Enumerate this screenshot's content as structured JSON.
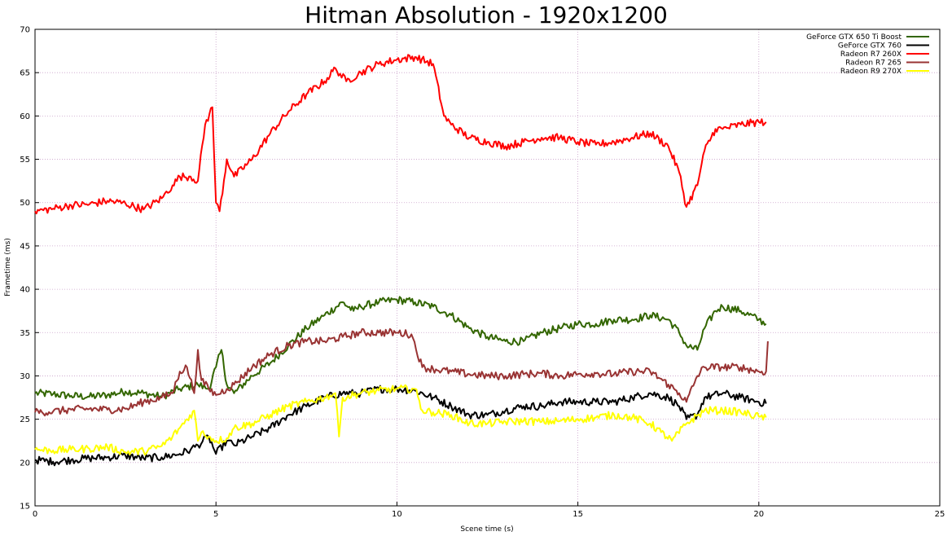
{
  "chart_data": {
    "type": "line",
    "title": "Hitman Absolution - 1920x1200",
    "xlabel": "Scene time (s)",
    "ylabel": "Frametime (ms)",
    "xlim": [
      0,
      25
    ],
    "ylim": [
      15,
      70
    ],
    "xticks": [
      0,
      5,
      10,
      15,
      20,
      25
    ],
    "yticks": [
      15,
      20,
      25,
      30,
      35,
      40,
      45,
      50,
      55,
      60,
      65,
      70
    ],
    "grid": true,
    "legend_position": "top-right",
    "series": [
      {
        "name": "GeForce GTX 650 Ti Boost",
        "color": "#336600",
        "x": [
          0,
          0.5,
          1,
          1.5,
          2,
          2.5,
          3,
          3.5,
          4,
          4.5,
          4.8,
          5.0,
          5.15,
          5.3,
          5.5,
          6,
          6.5,
          7,
          7.5,
          8,
          8.5,
          8.8,
          9,
          9.5,
          10,
          10.5,
          11,
          11.5,
          12,
          12.5,
          13,
          13.5,
          14,
          14.5,
          15,
          15.5,
          16,
          16.5,
          17,
          17.5,
          17.8,
          18,
          18.3,
          18.5,
          18.8,
          19,
          19.5,
          20,
          20.2
        ],
        "y": [
          28,
          27.9,
          27.7,
          27.6,
          27.8,
          28.2,
          28,
          27.6,
          28.5,
          29,
          28.5,
          31,
          33,
          29,
          28,
          30,
          31.5,
          33.5,
          35.5,
          37,
          38.5,
          37.5,
          38,
          38.5,
          38.8,
          38.5,
          38,
          37,
          35.5,
          34.5,
          34,
          34,
          35,
          35.5,
          36,
          36,
          36.5,
          36.5,
          37,
          36.5,
          35,
          33.5,
          33,
          35.5,
          37.5,
          38,
          37.5,
          36.5,
          36
        ]
      },
      {
        "name": "GeForce GTX 760",
        "color": "#000000",
        "x": [
          0,
          0.5,
          1,
          1.5,
          2,
          2.5,
          3,
          3.5,
          4,
          4.3,
          4.5,
          4.8,
          5.0,
          5.3,
          5.5,
          6,
          6.5,
          7,
          7.5,
          8,
          8.5,
          9,
          9.5,
          10,
          10.5,
          11,
          11.5,
          12,
          12.5,
          13,
          13.5,
          14,
          14.5,
          15,
          15.5,
          16,
          16.5,
          17,
          17.5,
          17.8,
          18,
          18.3,
          18.5,
          19,
          19.5,
          20,
          20.2
        ],
        "y": [
          20.3,
          20.1,
          20.3,
          20.5,
          20.6,
          20.8,
          20.5,
          20.6,
          21,
          21.5,
          22,
          23,
          21,
          22.5,
          22,
          23,
          24,
          25.5,
          26.5,
          27.5,
          28,
          28,
          28.5,
          28.5,
          28.3,
          27.5,
          26.5,
          25.5,
          25.5,
          26,
          26.5,
          26.5,
          27,
          27,
          27,
          27,
          27.5,
          28,
          27.5,
          26.5,
          25,
          25.5,
          27.5,
          28,
          27.5,
          27,
          26.8
        ]
      },
      {
        "name": "Radeon R7 260X",
        "color": "#ff0000",
        "x": [
          0,
          0.5,
          1,
          1.5,
          2,
          2.5,
          3,
          3.5,
          3.8,
          4,
          4.3,
          4.5,
          4.7,
          4.9,
          5.0,
          5.1,
          5.3,
          5.5,
          6,
          6.5,
          7,
          7.5,
          8,
          8.3,
          8.6,
          9,
          9.5,
          10,
          10.5,
          11.0,
          11.3,
          11.5,
          12,
          12.5,
          13,
          13.5,
          14,
          14.5,
          15,
          15.5,
          16,
          16.5,
          17,
          17.5,
          17.8,
          18,
          18.3,
          18.5,
          18.8,
          19,
          19.5,
          20,
          20.2
        ],
        "y": [
          49,
          49.3,
          49.7,
          49.8,
          50.2,
          49.9,
          49.2,
          50.5,
          52,
          53,
          53,
          52.5,
          59,
          61,
          50,
          49,
          55,
          53,
          55,
          58,
          60.5,
          62.5,
          64,
          65.5,
          64,
          65,
          66,
          66.5,
          66.8,
          66,
          60,
          59,
          57.5,
          57,
          56.5,
          57,
          57.5,
          57.5,
          57,
          56.7,
          57,
          57.5,
          58,
          56.5,
          53.5,
          49.5,
          52,
          56,
          58.5,
          58.5,
          59,
          59.3,
          59.3
        ]
      },
      {
        "name": "Radeon R7 265",
        "color": "#993333",
        "x": [
          0,
          0.5,
          1,
          1.5,
          2,
          2.5,
          3,
          3.5,
          3.8,
          4,
          4.2,
          4.4,
          4.5,
          4.6,
          4.8,
          5.0,
          5.3,
          5.5,
          6,
          6.5,
          7,
          7.5,
          8,
          8.5,
          9,
          9.5,
          10,
          10.4,
          10.7,
          11,
          11.5,
          12,
          12.5,
          13,
          13.5,
          14,
          14.5,
          15,
          15.5,
          16,
          16.5,
          17,
          17.5,
          17.8,
          18,
          18.3,
          18.5,
          19,
          19.5,
          20,
          20.2,
          20.25
        ],
        "y": [
          25.8,
          25.9,
          26.1,
          26.2,
          26.1,
          26.2,
          27,
          27.5,
          28,
          30.5,
          31,
          28,
          33,
          29.5,
          28.5,
          27.8,
          28.5,
          29,
          31,
          32.5,
          33.5,
          34,
          34,
          34.5,
          35,
          35,
          35,
          34.8,
          31,
          30.8,
          30.5,
          30.2,
          30,
          30,
          30.2,
          30.3,
          30,
          30.2,
          30.3,
          30.2,
          30.5,
          30.5,
          29,
          28,
          27,
          30,
          31,
          31,
          31,
          30.5,
          30.5,
          34
        ]
      },
      {
        "name": "Radeon R9 270X",
        "color": "#ffff00",
        "x": [
          0,
          0.5,
          1,
          1.5,
          2,
          2.5,
          3,
          3.5,
          3.8,
          4,
          4.2,
          4.4,
          4.5,
          4.6,
          4.8,
          5.0,
          5.3,
          5.5,
          6,
          6.5,
          7,
          7.5,
          8,
          8.3,
          8.4,
          8.5,
          9,
          9.5,
          10,
          10.5,
          10.7,
          11,
          11.5,
          12,
          12.5,
          13,
          13.5,
          14,
          14.5,
          15,
          15.5,
          16,
          16.5,
          17,
          17.3,
          17.6,
          18,
          18.5,
          19,
          19.5,
          20,
          20.2
        ],
        "y": [
          21.5,
          21.4,
          21.5,
          21.6,
          21.8,
          21.2,
          21.3,
          21.9,
          23,
          24,
          25,
          26,
          22.5,
          23.5,
          23,
          22.5,
          22.8,
          24,
          24.5,
          25.5,
          26.5,
          27,
          27.5,
          28,
          23,
          27.5,
          28,
          28.3,
          28.5,
          28.5,
          26,
          25.8,
          25.5,
          24.5,
          24.5,
          24.7,
          24.8,
          24.7,
          24.8,
          25,
          25.2,
          25.5,
          25.2,
          24.5,
          23.5,
          22.5,
          24.5,
          26,
          26,
          25.8,
          25.3,
          25.2
        ]
      }
    ]
  }
}
